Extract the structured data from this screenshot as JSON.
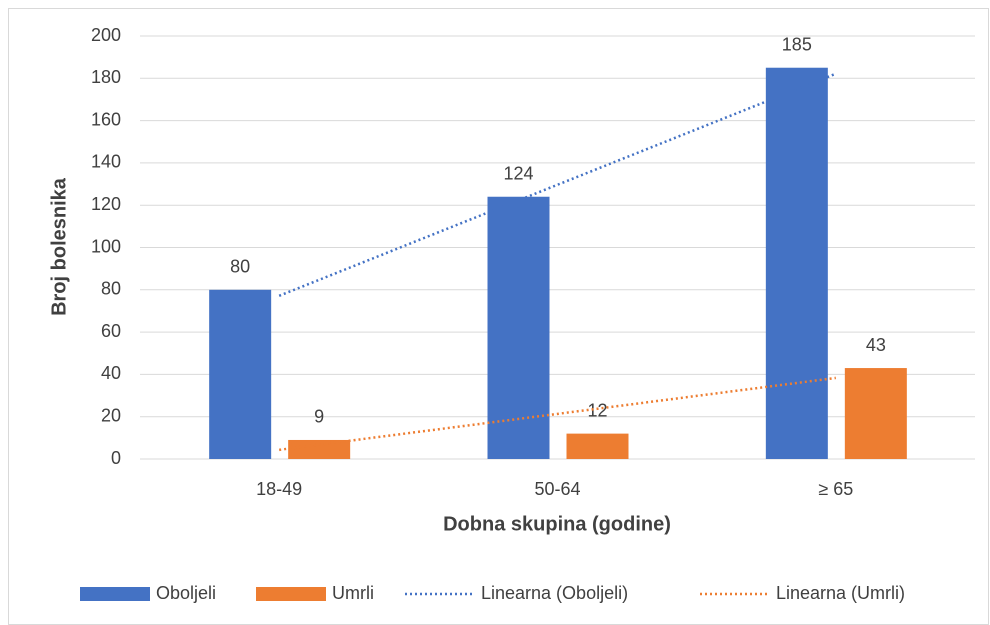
{
  "chart_data": {
    "type": "bar",
    "categories": [
      "18-49",
      "50-64",
      "≥ 65"
    ],
    "series": [
      {
        "name": "Oboljeli",
        "color": "#4472c4",
        "values": [
          80,
          124,
          185
        ]
      },
      {
        "name": "Umrli",
        "color": "#ed7d31",
        "values": [
          9,
          12,
          43
        ]
      }
    ],
    "trendlines": [
      {
        "name": "Linearna (Oboljeli)",
        "color": "#4472c4",
        "series": "Oboljeli"
      },
      {
        "name": "Linearna (Umrli)",
        "color": "#ed7d31",
        "series": "Umrli"
      }
    ],
    "x_label": "Dobna skupina (godine)",
    "y_label": "Broj bolesnika",
    "ylim": [
      0,
      200
    ],
    "yticks": [
      0,
      20,
      40,
      60,
      80,
      100,
      120,
      140,
      160,
      180,
      200
    ],
    "grid": true,
    "data_labels": true,
    "legend": "bottom"
  }
}
